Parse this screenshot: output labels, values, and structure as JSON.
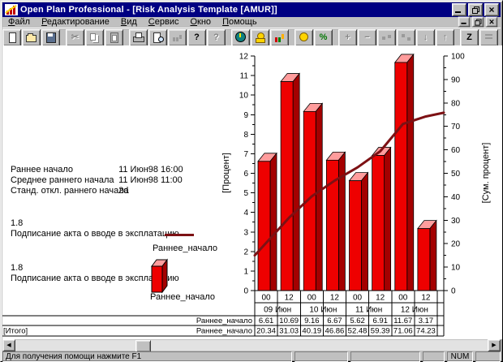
{
  "window": {
    "title": "Open Plan Professional - [Risk Analysis Template [AMUR]]"
  },
  "menu_bar": {
    "items": [
      "Файл",
      "Редактирование",
      "Вид",
      "Сервис",
      "Окно",
      "Помощь"
    ]
  },
  "toolbar": {
    "buttons": [
      {
        "name": "new-document",
        "enabled": true,
        "glyph": "",
        "group": 1
      },
      {
        "name": "open-file",
        "enabled": true,
        "glyph": "",
        "group": 1
      },
      {
        "name": "save-file",
        "enabled": true,
        "glyph": "",
        "group": 1
      },
      {
        "name": "cut",
        "enabled": false,
        "glyph": "✂",
        "group": 2
      },
      {
        "name": "copy",
        "enabled": false,
        "glyph": "",
        "group": 2
      },
      {
        "name": "paste",
        "enabled": false,
        "glyph": "",
        "group": 2
      },
      {
        "name": "print",
        "enabled": true,
        "glyph": "",
        "group": 3
      },
      {
        "name": "print-preview",
        "enabled": true,
        "glyph": "",
        "group": 3
      },
      {
        "name": "chart-update",
        "enabled": false,
        "glyph": "",
        "group": 3
      },
      {
        "name": "help",
        "enabled": true,
        "glyph": "?",
        "group": 3
      },
      {
        "name": "context-help",
        "enabled": false,
        "glyph": "?",
        "group": 3
      },
      {
        "name": "time-analysis",
        "enabled": true,
        "glyph": "",
        "group": 4
      },
      {
        "name": "resource-analysis",
        "enabled": true,
        "glyph": "",
        "group": 4
      },
      {
        "name": "risk-analysis",
        "enabled": true,
        "glyph": "",
        "group": 4
      },
      {
        "name": "cost-analysis",
        "enabled": true,
        "glyph": "",
        "group": 5
      },
      {
        "name": "percent-complete",
        "enabled": true,
        "glyph": "%",
        "group": 5
      },
      {
        "name": "add-activity",
        "enabled": false,
        "glyph": "+",
        "group": 6
      },
      {
        "name": "delete-activity",
        "enabled": false,
        "glyph": "−",
        "group": 6
      },
      {
        "name": "link-activities",
        "enabled": false,
        "glyph": "",
        "group": 6
      },
      {
        "name": "unlink-activities",
        "enabled": false,
        "glyph": "",
        "group": 6
      },
      {
        "name": "move-down",
        "enabled": false,
        "glyph": "↓",
        "group": 6
      },
      {
        "name": "move-up",
        "enabled": false,
        "glyph": "↑",
        "group": 6
      },
      {
        "name": "zoom",
        "enabled": true,
        "glyph": "Z",
        "group": 7
      },
      {
        "name": "sort",
        "enabled": false,
        "glyph": "",
        "group": 7
      },
      {
        "name": "tile-window",
        "enabled": false,
        "glyph": "",
        "group": 8
      },
      {
        "name": "cascade-window",
        "enabled": false,
        "glyph": "",
        "group": 8
      }
    ]
  },
  "info_panel": {
    "rows": [
      {
        "label": "Раннее начало",
        "value": "11 Июн98 16:00"
      },
      {
        "label": "Среднее раннего начала",
        "value": "11 Июн98 11:00"
      },
      {
        "label": "Станд. откл.  раннего начала",
        "value": "2d"
      }
    ]
  },
  "legends": [
    {
      "index": "1.8",
      "activity": "Подписание акта о вводе в эксплатацию",
      "series": "Раннее_начало",
      "swatch": "line"
    },
    {
      "index": "1.8",
      "activity": "Подписание акта о вводе в эксплатацию",
      "series": "Раннее_начало",
      "swatch": "bar"
    }
  ],
  "chart_data": {
    "type": "bar",
    "title": "",
    "x_hours": [
      "00",
      "12",
      "00",
      "12",
      "00",
      "12",
      "00",
      "12"
    ],
    "x_dates": [
      "09 Июн",
      "10 Июн",
      "11 Июн",
      "12 Июн"
    ],
    "left_axis": {
      "label": "[Процент]",
      "min": 0,
      "max": 12,
      "step": 1
    },
    "right_axis": {
      "label": "[Сум. процент]",
      "min": 0,
      "max": 100,
      "step": 10
    },
    "series": [
      {
        "name": "Раннее_начало",
        "type": "bar",
        "axis": "left",
        "values": [
          6.61,
          10.69,
          9.16,
          6.67,
          5.62,
          6.91,
          11.67,
          3.17
        ]
      },
      {
        "name": "Раннее_начало",
        "type": "line",
        "axis": "right",
        "values": [
          20.34,
          31.03,
          40.19,
          46.86,
          52.48,
          59.39,
          71.06,
          74.23
        ]
      }
    ],
    "colors": {
      "bar_front": "#ee0000",
      "bar_side": "#a40000",
      "bar_top": "#ff9c9c",
      "line": "#7d1114"
    },
    "grid": false,
    "legend_position": "left"
  },
  "table": {
    "rows": [
      {
        "left_label": "",
        "series_label": "Раннее_начало",
        "series_index": 0
      },
      {
        "left_label": "[Итого]",
        "series_label": "Раннее_начало",
        "series_index": 1
      }
    ]
  },
  "status_bar": {
    "message": "Для получения помощи нажмите F1",
    "num_indicator": "NUM"
  }
}
